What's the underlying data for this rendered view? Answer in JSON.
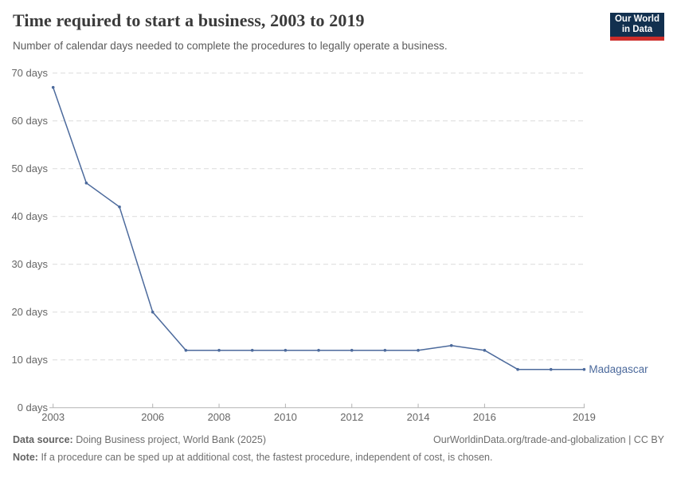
{
  "header": {
    "title": "Time required to start a business, 2003 to 2019",
    "subtitle": "Number of calendar days needed to complete the procedures to legally operate a business.",
    "logo": {
      "line1": "Our World",
      "line2": "in Data",
      "bg_color": "#12304F",
      "accent_color": "#CD2D2A"
    }
  },
  "chart_data": {
    "type": "line",
    "title": "Time required to start a business, 2003 to 2019",
    "subtitle": "Number of calendar days needed to complete the procedures to legally operate a business.",
    "x": [
      2003,
      2004,
      2005,
      2006,
      2007,
      2008,
      2009,
      2010,
      2011,
      2012,
      2013,
      2014,
      2015,
      2016,
      2017,
      2018,
      2019
    ],
    "series": [
      {
        "name": "Madagascar",
        "color": "#4C6A9C",
        "values": [
          67,
          47,
          42,
          20,
          12,
          12,
          12,
          12,
          12,
          12,
          12,
          12,
          13,
          12,
          8,
          8,
          8
        ]
      }
    ],
    "xlim": [
      2003,
      2019
    ],
    "ylim": [
      0,
      70
    ],
    "x_ticks": [
      2003,
      2006,
      2008,
      2010,
      2012,
      2014,
      2016,
      2019
    ],
    "y_ticks": [
      0,
      10,
      20,
      30,
      40,
      50,
      60,
      70
    ],
    "y_tick_suffix": " days",
    "xlabel": "",
    "ylabel": "",
    "grid": "horizontal-dashed",
    "legend_position": "end-of-line-label",
    "colors": {
      "gridline": "#dcdcdc",
      "axis": "#b3b3b3",
      "tick_label": "#666666"
    }
  },
  "footer": {
    "datasource_label": "Data source:",
    "datasource_text": "Doing Business project, World Bank (2025)",
    "link_text": "OurWorldinData.org/trade-and-globalization | CC BY",
    "note_label": "Note:",
    "note_text": "If a procedure can be sped up at additional cost, the fastest procedure, independent of cost, is chosen."
  }
}
